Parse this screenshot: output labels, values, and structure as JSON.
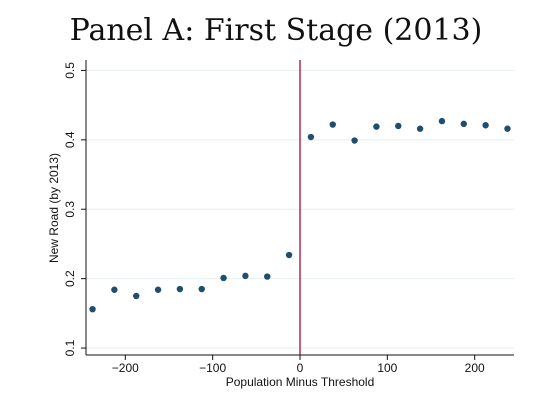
{
  "chart_data": {
    "type": "scatter",
    "title": "Panel A: First Stage (2013)",
    "xlabel": "Population Minus Threshold",
    "ylabel": "New Road (by 2013)",
    "xlim": [
      -245,
      245
    ],
    "ylim": [
      0.09,
      0.515
    ],
    "x_ticks": [
      -200,
      -100,
      0,
      100,
      200
    ],
    "x_tick_labels": [
      "−200",
      "−100",
      "0",
      "100",
      "200"
    ],
    "y_ticks": [
      0.1,
      0.2,
      0.3,
      0.4,
      0.5
    ],
    "y_tick_labels": [
      "0.1",
      "0.2",
      "0.3",
      "0.4",
      "0.5"
    ],
    "grid": true,
    "threshold_x": 0,
    "colors": {
      "points": "#1f4e6e",
      "threshold_line": "#a0102b",
      "grid": "#e8eef3",
      "axis": "#111111"
    },
    "series": [
      {
        "x": [
          -237.5,
          -212.5,
          -187.5,
          -162.5,
          -137.5,
          -112.5,
          -87.5,
          -62.5,
          -37.5,
          -12.5,
          12.5,
          37.5,
          62.5,
          87.5,
          112.5,
          137.5,
          162.5,
          187.5,
          212.5,
          237.5
        ],
        "values": [
          0.156,
          0.184,
          0.175,
          0.184,
          0.185,
          0.185,
          0.201,
          0.204,
          0.203,
          0.234,
          0.404,
          0.422,
          0.399,
          0.419,
          0.42,
          0.416,
          0.427,
          0.423,
          0.421,
          0.416
        ]
      }
    ]
  }
}
